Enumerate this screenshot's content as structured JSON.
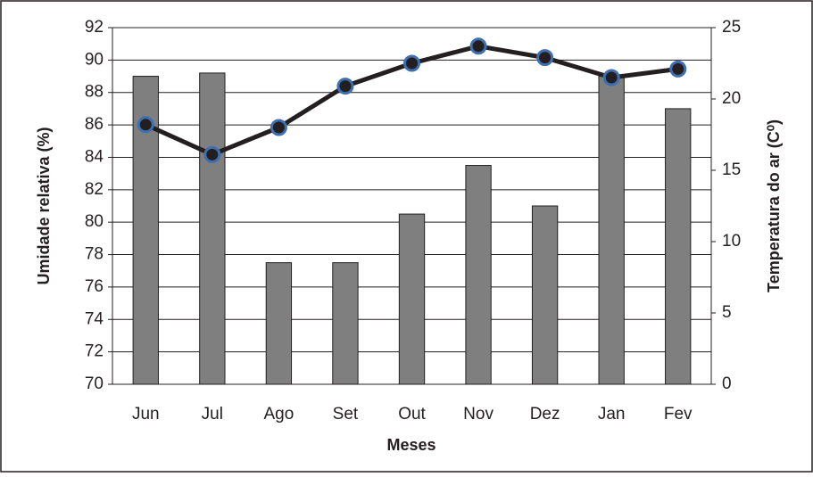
{
  "chart_data": {
    "type": "bar-line",
    "categories": [
      "Jun",
      "Jul",
      "Ago",
      "Set",
      "Out",
      "Nov",
      "Dez",
      "Jan",
      "Fev"
    ],
    "series": [
      {
        "type": "bar",
        "color": "#7f7f7f",
        "values": [
          89,
          89.2,
          77.5,
          77.5,
          80.5,
          83.5,
          81,
          89,
          87
        ]
      },
      {
        "type": "line",
        "axis": "y2",
        "color": "#231f20",
        "marker_edge": "#3e6fb0",
        "values": [
          18.2,
          16.1,
          18.0,
          20.9,
          22.5,
          23.7,
          22.9,
          21.5,
          22.1
        ]
      }
    ],
    "ylabel": "Umidade relativa (%)",
    "y2label": "Temperatura do ar (C⁰)",
    "xlabel": "Meses",
    "ylim": [
      70,
      92
    ],
    "yticks": [
      70,
      72,
      74,
      76,
      78,
      80,
      82,
      84,
      86,
      88,
      90,
      92
    ],
    "y2lim": [
      0,
      25
    ],
    "y2ticks": [
      0,
      5,
      10,
      15,
      20,
      25
    ],
    "grid": true
  }
}
